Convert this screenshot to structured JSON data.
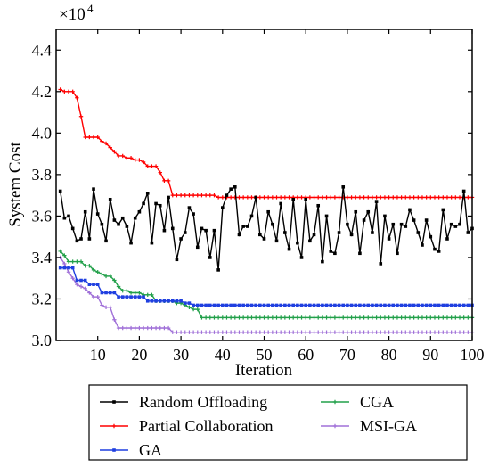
{
  "chart_data": {
    "type": "line",
    "title": "",
    "xlabel": "Iteration",
    "ylabel": "System Cost",
    "y_multiplier_label": "×10",
    "y_multiplier_exponent": "4",
    "xlim": [
      0,
      100
    ],
    "ylim": [
      3.0,
      4.5
    ],
    "x_ticks": [
      10,
      20,
      30,
      40,
      50,
      60,
      70,
      80,
      90,
      100
    ],
    "y_ticks": [
      3.0,
      3.2,
      3.4,
      3.6,
      3.8,
      4.0,
      4.2,
      4.4
    ],
    "y_tick_labels": [
      "3.0",
      "3.2",
      "3.4",
      "3.6",
      "3.8",
      "4.0",
      "4.2",
      "4.4"
    ],
    "grid": false,
    "legend_position": "bottom, outside plot",
    "x": [
      1,
      2,
      3,
      4,
      5,
      6,
      7,
      8,
      9,
      10,
      11,
      12,
      13,
      14,
      15,
      16,
      17,
      18,
      19,
      20,
      21,
      22,
      23,
      24,
      25,
      26,
      27,
      28,
      29,
      30,
      31,
      32,
      33,
      34,
      35,
      36,
      37,
      38,
      39,
      40,
      41,
      42,
      43,
      44,
      45,
      46,
      47,
      48,
      49,
      50,
      51,
      52,
      53,
      54,
      55,
      56,
      57,
      58,
      59,
      60,
      61,
      62,
      63,
      64,
      65,
      66,
      67,
      68,
      69,
      70,
      71,
      72,
      73,
      74,
      75,
      76,
      77,
      78,
      79,
      80,
      81,
      82,
      83,
      84,
      85,
      86,
      87,
      88,
      89,
      90,
      91,
      92,
      93,
      94,
      95,
      96,
      97,
      98,
      99,
      100
    ],
    "series": [
      {
        "name": "Random Offloading",
        "color": "#000000",
        "marker": "square",
        "values": [
          3.72,
          3.59,
          3.6,
          3.54,
          3.48,
          3.49,
          3.62,
          3.49,
          3.73,
          3.61,
          3.56,
          3.48,
          3.68,
          3.58,
          3.56,
          3.59,
          3.55,
          3.47,
          3.59,
          3.62,
          3.66,
          3.71,
          3.47,
          3.66,
          3.65,
          3.53,
          3.69,
          3.54,
          3.39,
          3.49,
          3.52,
          3.64,
          3.61,
          3.45,
          3.54,
          3.53,
          3.4,
          3.53,
          3.34,
          3.64,
          3.7,
          3.73,
          3.74,
          3.51,
          3.55,
          3.55,
          3.6,
          3.69,
          3.51,
          3.49,
          3.62,
          3.56,
          3.48,
          3.66,
          3.52,
          3.44,
          3.68,
          3.47,
          3.4,
          3.68,
          3.48,
          3.51,
          3.65,
          3.38,
          3.6,
          3.43,
          3.42,
          3.52,
          3.74,
          3.56,
          3.51,
          3.62,
          3.42,
          3.58,
          3.62,
          3.52,
          3.67,
          3.37,
          3.6,
          3.49,
          3.56,
          3.42,
          3.56,
          3.55,
          3.63,
          3.58,
          3.52,
          3.46,
          3.58,
          3.5,
          3.44,
          3.43,
          3.63,
          3.49,
          3.56,
          3.55,
          3.56,
          3.72,
          3.52,
          3.54
        ]
      },
      {
        "name": "Partial Collaboration",
        "color": "#ff0000",
        "marker": "plus",
        "values": [
          4.21,
          4.2,
          4.2,
          4.2,
          4.17,
          4.08,
          3.98,
          3.98,
          3.98,
          3.98,
          3.96,
          3.95,
          3.93,
          3.91,
          3.89,
          3.89,
          3.88,
          3.88,
          3.87,
          3.87,
          3.86,
          3.84,
          3.84,
          3.84,
          3.81,
          3.77,
          3.77,
          3.7,
          3.7,
          3.7,
          3.7,
          3.7,
          3.7,
          3.7,
          3.7,
          3.7,
          3.7,
          3.7,
          3.69,
          3.69,
          3.69,
          3.69,
          3.69,
          3.69,
          3.69,
          3.69,
          3.69,
          3.69,
          3.69,
          3.69,
          3.69,
          3.69,
          3.69,
          3.69,
          3.69,
          3.69,
          3.69,
          3.69,
          3.69,
          3.69,
          3.69,
          3.69,
          3.69,
          3.69,
          3.69,
          3.69,
          3.69,
          3.69,
          3.69,
          3.69,
          3.69,
          3.69,
          3.69,
          3.69,
          3.69,
          3.69,
          3.69,
          3.69,
          3.69,
          3.69,
          3.69,
          3.69,
          3.69,
          3.69,
          3.69,
          3.69,
          3.69,
          3.69,
          3.69,
          3.69,
          3.69,
          3.69,
          3.69,
          3.69,
          3.69,
          3.69,
          3.69,
          3.69,
          3.69,
          3.69
        ]
      },
      {
        "name": "GA",
        "color": "#1f3fe0",
        "marker": "square",
        "values": [
          3.35,
          3.35,
          3.35,
          3.35,
          3.29,
          3.29,
          3.29,
          3.27,
          3.27,
          3.27,
          3.23,
          3.23,
          3.23,
          3.23,
          3.21,
          3.21,
          3.21,
          3.21,
          3.21,
          3.21,
          3.21,
          3.19,
          3.19,
          3.19,
          3.19,
          3.19,
          3.19,
          3.19,
          3.19,
          3.19,
          3.18,
          3.18,
          3.17,
          3.17,
          3.17,
          3.17,
          3.17,
          3.17,
          3.17,
          3.17,
          3.17,
          3.17,
          3.17,
          3.17,
          3.17,
          3.17,
          3.17,
          3.17,
          3.17,
          3.17,
          3.17,
          3.17,
          3.17,
          3.17,
          3.17,
          3.17,
          3.17,
          3.17,
          3.17,
          3.17,
          3.17,
          3.17,
          3.17,
          3.17,
          3.17,
          3.17,
          3.17,
          3.17,
          3.17,
          3.17,
          3.17,
          3.17,
          3.17,
          3.17,
          3.17,
          3.17,
          3.17,
          3.17,
          3.17,
          3.17,
          3.17,
          3.17,
          3.17,
          3.17,
          3.17,
          3.17,
          3.17,
          3.17,
          3.17,
          3.17,
          3.17,
          3.17,
          3.17,
          3.17,
          3.17,
          3.17,
          3.17,
          3.17,
          3.17,
          3.17
        ]
      },
      {
        "name": "CGA",
        "color": "#22a04a",
        "marker": "plus",
        "values": [
          3.43,
          3.41,
          3.38,
          3.38,
          3.38,
          3.38,
          3.36,
          3.36,
          3.34,
          3.33,
          3.32,
          3.31,
          3.31,
          3.29,
          3.26,
          3.24,
          3.24,
          3.23,
          3.23,
          3.23,
          3.22,
          3.22,
          3.22,
          3.19,
          3.19,
          3.19,
          3.19,
          3.19,
          3.18,
          3.18,
          3.17,
          3.16,
          3.15,
          3.15,
          3.11,
          3.11,
          3.11,
          3.11,
          3.11,
          3.11,
          3.11,
          3.11,
          3.11,
          3.11,
          3.11,
          3.11,
          3.11,
          3.11,
          3.11,
          3.11,
          3.11,
          3.11,
          3.11,
          3.11,
          3.11,
          3.11,
          3.11,
          3.11,
          3.11,
          3.11,
          3.11,
          3.11,
          3.11,
          3.11,
          3.11,
          3.11,
          3.11,
          3.11,
          3.11,
          3.11,
          3.11,
          3.11,
          3.11,
          3.11,
          3.11,
          3.11,
          3.11,
          3.11,
          3.11,
          3.11,
          3.11,
          3.11,
          3.11,
          3.11,
          3.11,
          3.11,
          3.11,
          3.11,
          3.11,
          3.11,
          3.11,
          3.11,
          3.11,
          3.11,
          3.11,
          3.11,
          3.11,
          3.11,
          3.11,
          3.11
        ]
      },
      {
        "name": "MSI-GA",
        "color": "#a070d8",
        "marker": "plus",
        "values": [
          3.4,
          3.37,
          3.33,
          3.3,
          3.27,
          3.26,
          3.25,
          3.23,
          3.21,
          3.21,
          3.17,
          3.16,
          3.16,
          3.1,
          3.06,
          3.06,
          3.06,
          3.06,
          3.06,
          3.06,
          3.06,
          3.06,
          3.06,
          3.06,
          3.06,
          3.06,
          3.06,
          3.04,
          3.04,
          3.04,
          3.04,
          3.04,
          3.04,
          3.04,
          3.04,
          3.04,
          3.04,
          3.04,
          3.04,
          3.04,
          3.04,
          3.04,
          3.04,
          3.04,
          3.04,
          3.04,
          3.04,
          3.04,
          3.04,
          3.04,
          3.04,
          3.04,
          3.04,
          3.04,
          3.04,
          3.04,
          3.04,
          3.04,
          3.04,
          3.04,
          3.04,
          3.04,
          3.04,
          3.04,
          3.04,
          3.04,
          3.04,
          3.04,
          3.04,
          3.04,
          3.04,
          3.04,
          3.04,
          3.04,
          3.04,
          3.04,
          3.04,
          3.04,
          3.04,
          3.04,
          3.04,
          3.04,
          3.04,
          3.04,
          3.04,
          3.04,
          3.04,
          3.04,
          3.04,
          3.04,
          3.04,
          3.04,
          3.04,
          3.04,
          3.04,
          3.04,
          3.04,
          3.04,
          3.04,
          3.04
        ]
      }
    ],
    "legend_layout": [
      {
        "series": 0,
        "column": 0,
        "row": 0
      },
      {
        "series": 1,
        "column": 0,
        "row": 1
      },
      {
        "series": 2,
        "column": 0,
        "row": 2
      },
      {
        "series": 3,
        "column": 1,
        "row": 0
      },
      {
        "series": 4,
        "column": 1,
        "row": 1
      }
    ]
  }
}
